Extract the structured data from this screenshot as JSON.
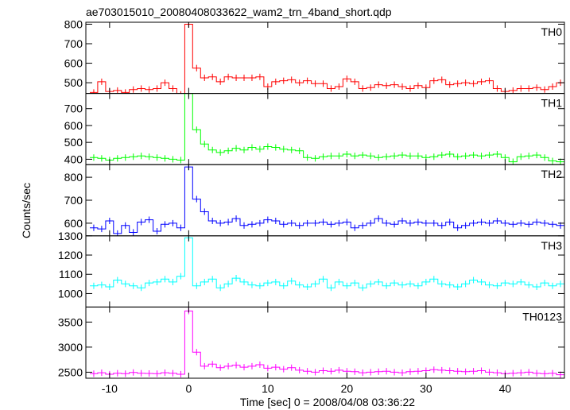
{
  "chart_data": {
    "type": "line",
    "title": "ae703015010_20080408033622_wam2_trn_4band_short.qdp",
    "xlabel": "Time [sec] 0 = 2008/04/08 03:36:22",
    "ylabel": "Counts/sec",
    "xlim": [
      -13,
      47.5
    ],
    "xticks": [
      -10,
      0,
      10,
      20,
      30,
      40
    ],
    "bin_width": 1.0,
    "x": [
      -12,
      -11,
      -10,
      -9,
      -8,
      -7,
      -6,
      -5,
      -4,
      -3,
      -2,
      -1,
      0,
      1,
      2,
      3,
      4,
      5,
      6,
      7,
      8,
      9,
      10,
      11,
      12,
      13,
      14,
      15,
      16,
      17,
      18,
      19,
      20,
      21,
      22,
      23,
      24,
      25,
      26,
      27,
      28,
      29,
      30,
      31,
      32,
      33,
      34,
      35,
      36,
      37,
      38,
      39,
      40,
      41,
      42,
      43,
      44,
      45,
      46,
      47
    ],
    "series": [
      {
        "name": "TH0",
        "color": "#ff0000",
        "ylim": [
          445,
          810
        ],
        "yticks": [
          500,
          600,
          700,
          800
        ],
        "values": [
          450,
          505,
          455,
          460,
          450,
          465,
          470,
          465,
          470,
          500,
          470,
          440,
          800,
          575,
          525,
          530,
          505,
          530,
          525,
          525,
          525,
          530,
          480,
          505,
          510,
          515,
          500,
          510,
          495,
          495,
          470,
          480,
          520,
          505,
          470,
          475,
          490,
          485,
          490,
          480,
          470,
          485,
          475,
          510,
          515,
          490,
          495,
          500,
          495,
          505,
          510,
          470,
          455,
          460,
          470,
          470,
          475,
          465,
          480,
          500
        ]
      },
      {
        "name": "TH1",
        "color": "#00ff00",
        "ylim": [
          368,
          790
        ],
        "yticks": [
          400,
          500,
          600,
          700
        ],
        "values": [
          410,
          405,
          395,
          405,
          410,
          415,
          420,
          415,
          410,
          405,
          400,
          395,
          790,
          575,
          490,
          455,
          440,
          450,
          465,
          455,
          470,
          460,
          475,
          470,
          460,
          455,
          450,
          410,
          405,
          415,
          420,
          420,
          430,
          420,
          425,
          420,
          410,
          415,
          420,
          425,
          420,
          420,
          410,
          415,
          425,
          430,
          415,
          420,
          425,
          420,
          425,
          430,
          410,
          385,
          415,
          420,
          425,
          410,
          390,
          385
        ]
      },
      {
        "name": "TH2",
        "color": "#0000ff",
        "ylim": [
          545,
          855
        ],
        "yticks": [
          600,
          700,
          800
        ],
        "values": [
          580,
          575,
          610,
          555,
          590,
          560,
          605,
          615,
          565,
          595,
          600,
          580,
          845,
          705,
          650,
          610,
          600,
          605,
          620,
          590,
          595,
          600,
          615,
          610,
          595,
          600,
          590,
          600,
          600,
          605,
          595,
          600,
          605,
          580,
          590,
          600,
          620,
          600,
          595,
          610,
          600,
          605,
          600,
          600,
          590,
          605,
          580,
          590,
          600,
          605,
          600,
          610,
          600,
          595,
          600,
          595,
          605,
          600,
          595,
          590
        ]
      },
      {
        "name": "TH3",
        "color": "#00ffff",
        "ylim": [
          930,
          1300
        ],
        "yticks": [
          1000,
          1100,
          1200,
          1300
        ],
        "values": [
          1040,
          1045,
          1035,
          1070,
          1050,
          1040,
          1030,
          1055,
          1060,
          1075,
          1060,
          1090,
          1290,
          1040,
          1060,
          1075,
          1030,
          1050,
          1080,
          1060,
          1045,
          1040,
          1055,
          1060,
          1040,
          1065,
          1045,
          1035,
          1050,
          1075,
          1030,
          1060,
          1040,
          1055,
          1030,
          1050,
          1060,
          1040,
          1055,
          1045,
          1050,
          1040,
          1060,
          1075,
          1050,
          1045,
          1035,
          1050,
          1070,
          1060,
          1045,
          1040,
          1055,
          1050,
          1060,
          1045,
          1035,
          1055,
          1040,
          1050
        ]
      },
      {
        "name": "TH0123",
        "color": "#ff00ff",
        "ylim": [
          2380,
          3800
        ],
        "yticks": [
          2500,
          3000,
          3500
        ],
        "values": [
          2470,
          2490,
          2460,
          2480,
          2470,
          2495,
          2480,
          2475,
          2470,
          2490,
          2480,
          2460,
          3720,
          2900,
          2620,
          2660,
          2590,
          2620,
          2640,
          2600,
          2620,
          2650,
          2580,
          2600,
          2560,
          2590,
          2540,
          2520,
          2500,
          2530,
          2520,
          2540,
          2520,
          2510,
          2490,
          2500,
          2510,
          2520,
          2500,
          2490,
          2510,
          2520,
          2530,
          2550,
          2540,
          2530,
          2520,
          2510,
          2520,
          2530,
          2500,
          2490,
          2470,
          2480,
          2490,
          2500,
          2480,
          2470,
          2480,
          2450
        ]
      }
    ]
  }
}
